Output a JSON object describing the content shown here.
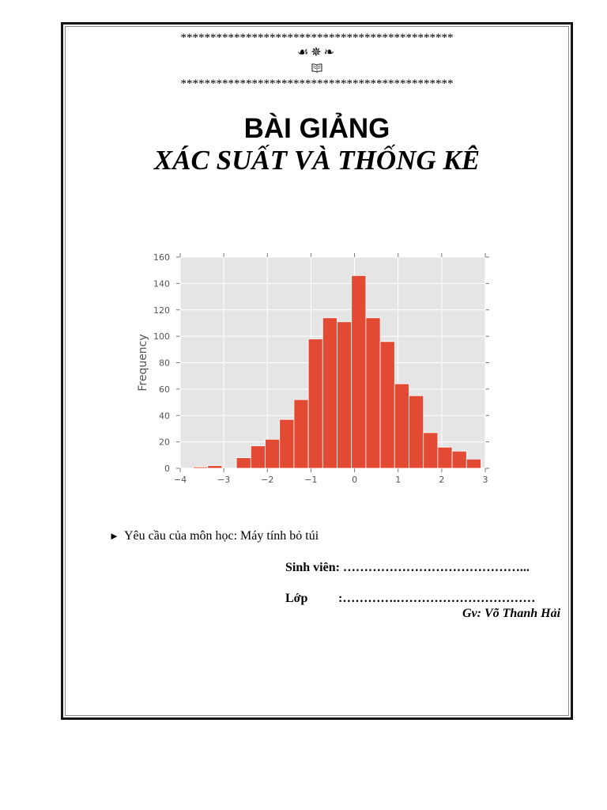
{
  "page": {
    "decor": {
      "stars_top": "**********************************************",
      "ornament": "☙✵❧",
      "book_icon": "open-book-icon",
      "stars_bottom": "**********************************************"
    },
    "title": "BÀI GIẢNG",
    "subtitle": "XÁC SUẤT VÀ THỐNG KÊ",
    "requirement": {
      "bullet": "►",
      "text": "Yêu cầu của môn học: Máy tính bỏ túi"
    },
    "student": {
      "label": "Sinh viên:",
      "dots": "……………………………………..."
    },
    "class": {
      "label": "Lớp",
      "dots": ":………….……………………………"
    },
    "teacher": "Gv: Võ Thanh Hải"
  },
  "chart_data": {
    "type": "bar",
    "bin_edges": [
      -3.7,
      -3.37,
      -3.04,
      -2.71,
      -2.38,
      -2.05,
      -1.72,
      -1.39,
      -1.06,
      -0.73,
      -0.4,
      -0.07,
      0.26,
      0.59,
      0.92,
      1.25,
      1.58,
      1.91,
      2.24,
      2.57,
      2.9
    ],
    "values": [
      1,
      2,
      0,
      8,
      17,
      22,
      37,
      52,
      98,
      114,
      111,
      146,
      114,
      96,
      64,
      55,
      27,
      16,
      13,
      7
    ],
    "ylabel": "Frequency",
    "xlim": [
      -4,
      3
    ],
    "ylim": [
      0,
      160
    ],
    "xticks": [
      -4,
      -3,
      -2,
      -1,
      0,
      1,
      2,
      3
    ],
    "xtick_labels": [
      "−4",
      "−3",
      "−2",
      "−1",
      "0",
      "1",
      "2",
      "3"
    ],
    "yticks": [
      0,
      20,
      40,
      60,
      80,
      100,
      120,
      140,
      160
    ],
    "ytick_labels": [
      "0",
      "20",
      "40",
      "60",
      "80",
      "100",
      "120",
      "140",
      "160"
    ],
    "grid": true,
    "bar_color": "#E24A33",
    "background_color": "#E5E5E5",
    "grid_color": "#FFFFFF"
  }
}
